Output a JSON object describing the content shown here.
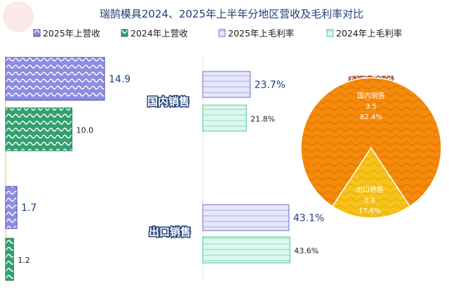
{
  "chart_data": {
    "type": "bar",
    "title": "瑞鹄模具2024、2025年上半年分地区营收及毛利率对比",
    "legend": [
      {
        "name": "2025年上营收",
        "color": "#7f7fd0"
      },
      {
        "name": "2024年上营收",
        "color": "#2e9a6a"
      },
      {
        "name": "2025年上毛利率",
        "color": "#b0b4ee"
      },
      {
        "name": "2024年上毛利率",
        "color": "#a8ead0"
      }
    ],
    "categories": [
      "国内销售",
      "出口销售"
    ],
    "series": [
      {
        "name": "2025年上营收",
        "values": [
          14.9,
          1.7
        ],
        "labels": [
          "14.9",
          "1.7"
        ]
      },
      {
        "name": "2024年上营收",
        "values": [
          10.0,
          1.2
        ],
        "labels": [
          "10.0",
          "1.2"
        ]
      },
      {
        "name": "2025年上毛利率",
        "values": [
          23.7,
          43.1
        ],
        "labels": [
          "23.7%",
          "43.1%"
        ]
      },
      {
        "name": "2024年上毛利率",
        "values": [
          21.8,
          43.6
        ],
        "labels": [
          "21.8%",
          "43.6%"
        ]
      }
    ],
    "pie": {
      "title": "毛利额构成分析",
      "slices": [
        {
          "name": "国内销售",
          "value": 3.5,
          "percent": "82.4%",
          "color": "#f58a0b"
        },
        {
          "name": "出口销售",
          "value": 0.8,
          "percent": "17.6%",
          "color": "#f7c21c"
        }
      ]
    }
  }
}
